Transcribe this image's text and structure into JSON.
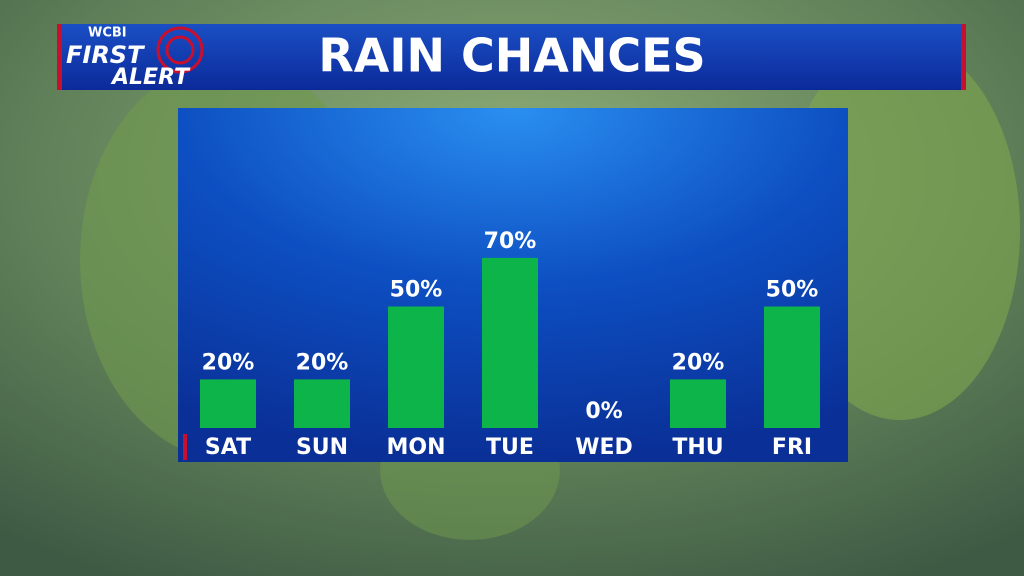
{
  "brand": {
    "station": "WCBI",
    "line1": "FIRST",
    "line2": "ALERT"
  },
  "chart_data": {
    "type": "bar",
    "title": "RAIN CHANCES",
    "categories": [
      "SAT",
      "SUN",
      "MON",
      "TUE",
      "WED",
      "THU",
      "FRI"
    ],
    "values": [
      20,
      20,
      50,
      70,
      0,
      20,
      50
    ],
    "value_labels": [
      "20%",
      "20%",
      "50%",
      "70%",
      "0%",
      "20%",
      "50%"
    ],
    "color": "#0cb449"
  }
}
